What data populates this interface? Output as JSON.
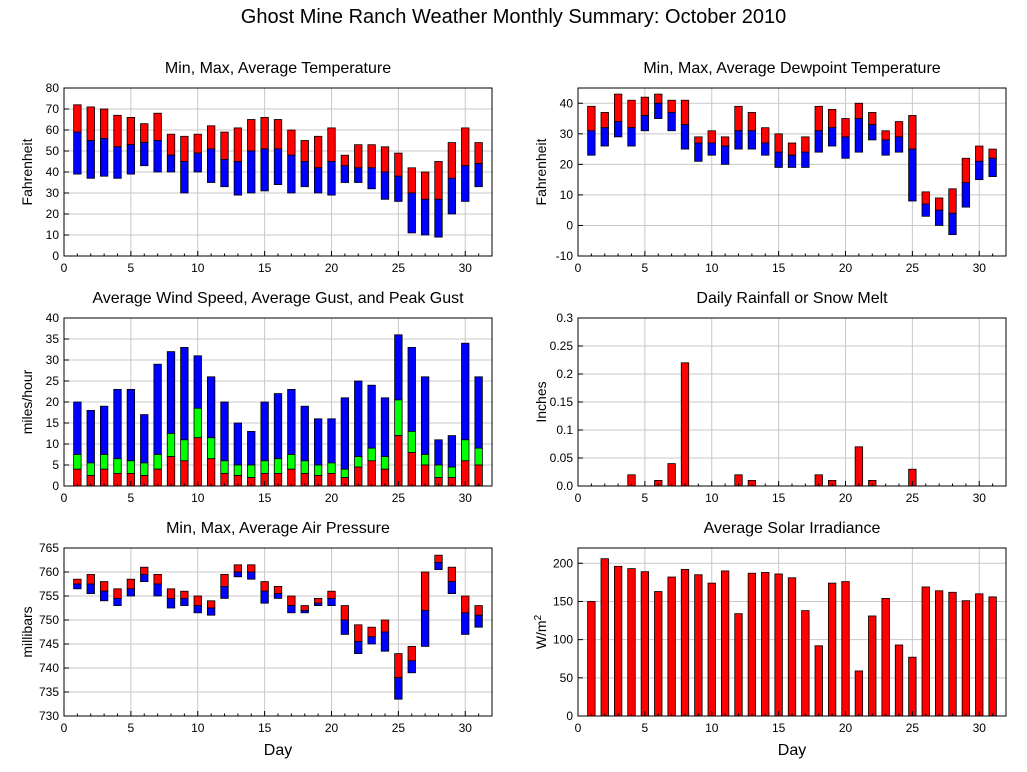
{
  "page": {
    "title": "Ghost Mine Ranch Weather Monthly Summary: October 2010"
  },
  "colors": {
    "red": "#ff0000",
    "blue": "#0000ff",
    "green": "#00ff00",
    "outline": "#000000",
    "grid": "#c8c8c8"
  },
  "chart_data": [
    {
      "id": "temp",
      "type": "bar",
      "title": "Min, Max, Average Temperature",
      "ylabel": "Fahrenheit",
      "xlabel": "",
      "xlim": [
        0,
        32
      ],
      "ylim": [
        0,
        80
      ],
      "xticks": [
        0,
        5,
        10,
        15,
        20,
        25,
        30
      ],
      "yticks": [
        0,
        10,
        20,
        30,
        40,
        50,
        60,
        70,
        80
      ],
      "grid": true,
      "style": "minmaxavg",
      "x": [
        1,
        2,
        3,
        4,
        5,
        6,
        7,
        8,
        9,
        10,
        11,
        12,
        13,
        14,
        15,
        16,
        17,
        18,
        19,
        20,
        21,
        22,
        23,
        24,
        25,
        26,
        27,
        28,
        29,
        30,
        31
      ],
      "series": [
        {
          "name": "max",
          "values": [
            72,
            71,
            70,
            67,
            66,
            63,
            68,
            58,
            57,
            58,
            62,
            59,
            61,
            65,
            66,
            65,
            60,
            55,
            57,
            61,
            48,
            53,
            53,
            52,
            49,
            42,
            40,
            45,
            54,
            61,
            54
          ]
        },
        {
          "name": "avg",
          "values": [
            59,
            55,
            56,
            52,
            53,
            54,
            55,
            48,
            45,
            49,
            51,
            46,
            45,
            50,
            51,
            51,
            48,
            45,
            42,
            45,
            43,
            42,
            42,
            40,
            38,
            30,
            27,
            27,
            37,
            43,
            44
          ]
        },
        {
          "name": "min",
          "values": [
            39,
            37,
            38,
            37,
            39,
            43,
            40,
            40,
            30,
            40,
            35,
            33,
            29,
            30,
            31,
            34,
            30,
            33,
            30,
            29,
            35,
            35,
            32,
            27,
            26,
            11,
            10,
            9,
            20,
            26,
            33
          ]
        }
      ]
    },
    {
      "id": "dew",
      "type": "bar",
      "title": "Min, Max, Average Dewpoint Temperature",
      "ylabel": "Fahrenheit",
      "xlabel": "",
      "xlim": [
        0,
        32
      ],
      "ylim": [
        -10,
        45
      ],
      "xticks": [
        0,
        5,
        10,
        15,
        20,
        25,
        30
      ],
      "yticks": [
        -10,
        0,
        10,
        20,
        30,
        40
      ],
      "grid": true,
      "style": "minmaxavg",
      "x": [
        1,
        2,
        3,
        4,
        5,
        6,
        7,
        8,
        9,
        10,
        11,
        12,
        13,
        14,
        15,
        16,
        17,
        18,
        19,
        20,
        21,
        22,
        23,
        24,
        25,
        26,
        27,
        28,
        29,
        30,
        31
      ],
      "series": [
        {
          "name": "max",
          "values": [
            39,
            37,
            43,
            41,
            42,
            43,
            41,
            41,
            29,
            31,
            29,
            39,
            37,
            32,
            30,
            27,
            29,
            39,
            38,
            35,
            40,
            37,
            31,
            34,
            36,
            11,
            9,
            12,
            22,
            26,
            25
          ]
        },
        {
          "name": "avg",
          "values": [
            31,
            32,
            34,
            32,
            36,
            40,
            37,
            33,
            27,
            27,
            26,
            31,
            31,
            27,
            24,
            23,
            24,
            31,
            32,
            29,
            35,
            33,
            28,
            29,
            25,
            7,
            5,
            4,
            14,
            21,
            22
          ]
        },
        {
          "name": "min",
          "values": [
            23,
            26,
            29,
            26,
            31,
            35,
            31,
            25,
            21,
            23,
            20,
            25,
            25,
            23,
            19,
            19,
            19,
            24,
            26,
            22,
            24,
            28,
            23,
            24,
            8,
            3,
            0,
            -3,
            6,
            15,
            16
          ]
        }
      ]
    },
    {
      "id": "wind",
      "type": "bar",
      "title": "Average Wind Speed, Average Gust, and Peak Gust",
      "ylabel": "miles/hour",
      "xlabel": "",
      "xlim": [
        0,
        32
      ],
      "ylim": [
        0,
        40
      ],
      "xticks": [
        0,
        5,
        10,
        15,
        20,
        25,
        30
      ],
      "yticks": [
        0,
        5,
        10,
        15,
        20,
        25,
        30,
        35,
        40
      ],
      "grid": true,
      "style": "stackedwind",
      "x": [
        1,
        2,
        3,
        4,
        5,
        6,
        7,
        8,
        9,
        10,
        11,
        12,
        13,
        14,
        15,
        16,
        17,
        18,
        19,
        20,
        21,
        22,
        23,
        24,
        25,
        26,
        27,
        28,
        29,
        30,
        31
      ],
      "series": [
        {
          "name": "avg_speed",
          "values": [
            4,
            2.5,
            4,
            3,
            3,
            2.5,
            4,
            7,
            6,
            11.5,
            6.5,
            3,
            2.5,
            2,
            3,
            3,
            4,
            3,
            2.5,
            3,
            2,
            4.5,
            6,
            4,
            12,
            8,
            5,
            2,
            2,
            6,
            5
          ]
        },
        {
          "name": "avg_gust",
          "values": [
            7.5,
            5.5,
            7.5,
            6.5,
            6,
            5.5,
            7.5,
            12.5,
            11,
            18.5,
            11.5,
            6,
            5,
            5,
            6,
            6.5,
            7.5,
            6,
            5,
            5.5,
            4,
            7,
            9,
            7,
            20.5,
            13,
            7.5,
            5,
            4.5,
            11,
            9
          ]
        },
        {
          "name": "peak_gust",
          "values": [
            20,
            18,
            19,
            23,
            23,
            17,
            29,
            32,
            33,
            31,
            26,
            20,
            15,
            13,
            20,
            22,
            23,
            19,
            16,
            16,
            21,
            25,
            24,
            21,
            36,
            33,
            26,
            11,
            12,
            34,
            26
          ]
        }
      ]
    },
    {
      "id": "rain",
      "type": "bar",
      "title": "Daily Rainfall or Snow Melt",
      "ylabel": "Inches",
      "xlabel": "",
      "xlim": [
        0,
        32
      ],
      "ylim": [
        0,
        0.3
      ],
      "xticks": [
        0,
        5,
        10,
        15,
        20,
        25,
        30
      ],
      "yticks": [
        0,
        0.05,
        0.1,
        0.15,
        0.2,
        0.25,
        0.3
      ],
      "ytick_labels": [
        "0.0",
        "0.05",
        "0.1",
        "0.15",
        "0.2",
        "0.25",
        "0.3"
      ],
      "grid": true,
      "style": "simple",
      "x": [
        4,
        6,
        7,
        8,
        12,
        13,
        18,
        19,
        21,
        22,
        25
      ],
      "values": [
        0.02,
        0.01,
        0.04,
        0.22,
        0.02,
        0.01,
        0.02,
        0.01,
        0.07,
        0.01,
        0.03
      ]
    },
    {
      "id": "pressure",
      "type": "bar",
      "title": "Min, Max, Average Air Pressure",
      "ylabel": "millibars",
      "xlabel": "Day",
      "xlim": [
        0,
        32
      ],
      "ylim": [
        730,
        765
      ],
      "xticks": [
        0,
        5,
        10,
        15,
        20,
        25,
        30
      ],
      "yticks": [
        730,
        735,
        740,
        745,
        750,
        755,
        760,
        765
      ],
      "grid": true,
      "style": "minmaxavg",
      "x": [
        1,
        2,
        3,
        4,
        5,
        6,
        7,
        8,
        9,
        10,
        11,
        12,
        13,
        14,
        15,
        16,
        17,
        18,
        19,
        20,
        21,
        22,
        23,
        24,
        25,
        26,
        27,
        28,
        29,
        30,
        31
      ],
      "series": [
        {
          "name": "max",
          "values": [
            758.5,
            759.5,
            758,
            756.5,
            758.5,
            761,
            759.5,
            756.5,
            756,
            755,
            754,
            759.5,
            761.5,
            761.5,
            758,
            757,
            755,
            753,
            754.5,
            756,
            753,
            749,
            748.5,
            750,
            743,
            744.5,
            760,
            763.5,
            761,
            755,
            753
          ]
        },
        {
          "name": "avg",
          "values": [
            757.5,
            757.5,
            756,
            754.5,
            756.5,
            759.5,
            757.5,
            754.5,
            754.5,
            753,
            752.5,
            757,
            760,
            760,
            756,
            755.5,
            753,
            752,
            753.5,
            754.5,
            750,
            745.5,
            746.5,
            747.5,
            738,
            741.5,
            752,
            762,
            758,
            751.5,
            751
          ]
        },
        {
          "name": "min",
          "values": [
            756.5,
            755.5,
            754,
            753,
            755,
            758,
            755,
            752.5,
            753,
            751.5,
            751,
            754.5,
            759,
            758.5,
            753.5,
            754.5,
            751.5,
            751.5,
            753,
            753,
            747,
            743,
            745,
            743.5,
            733.5,
            739,
            744.5,
            760.5,
            755.5,
            747,
            748.5
          ]
        }
      ]
    },
    {
      "id": "solar",
      "type": "bar",
      "title": "Average Solar Irradiance",
      "ylabel": "W/m",
      "ylabel_sup": "2",
      "xlabel": "Day",
      "xlim": [
        0,
        32
      ],
      "ylim": [
        0,
        220
      ],
      "xticks": [
        0,
        5,
        10,
        15,
        20,
        25,
        30
      ],
      "yticks": [
        0,
        50,
        100,
        150,
        200
      ],
      "grid": true,
      "style": "simple",
      "x": [
        1,
        2,
        3,
        4,
        5,
        6,
        7,
        8,
        9,
        10,
        11,
        12,
        13,
        14,
        15,
        16,
        17,
        18,
        19,
        20,
        21,
        22,
        23,
        24,
        25,
        26,
        27,
        28,
        29,
        30,
        31
      ],
      "values": [
        150,
        206,
        196,
        193,
        189,
        163,
        182,
        192,
        185,
        174,
        190,
        134,
        187,
        188,
        186,
        181,
        138,
        92,
        174,
        176,
        59,
        131,
        154,
        93,
        77,
        169,
        164,
        162,
        151,
        160,
        156
      ]
    }
  ]
}
